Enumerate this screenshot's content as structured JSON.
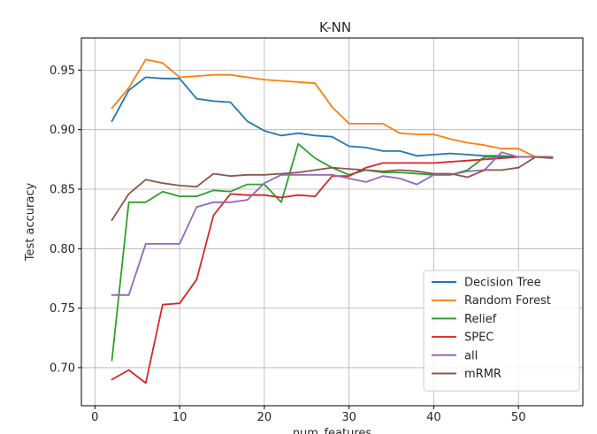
{
  "chart_data": {
    "type": "line",
    "title": "K-NN",
    "xlabel": "num_features",
    "ylabel": "Test accuracy",
    "xlim": [
      -1.6,
      57.6
    ],
    "ylim": [
      0.668,
      0.977
    ],
    "xticks": [
      0,
      10,
      20,
      30,
      40,
      50
    ],
    "yticks": [
      0.7,
      0.75,
      0.8,
      0.85,
      0.9,
      0.95
    ],
    "xtick_labels": [
      "0",
      "10",
      "20",
      "30",
      "40",
      "50"
    ],
    "ytick_labels": [
      "0.70",
      "0.75",
      "0.80",
      "0.85",
      "0.90",
      "0.95"
    ],
    "grid": true,
    "legend_position": "bottom-right",
    "x": [
      2,
      4,
      6,
      8,
      10,
      12,
      14,
      16,
      18,
      20,
      22,
      24,
      26,
      28,
      30,
      32,
      34,
      36,
      38,
      40,
      42,
      44,
      46,
      48,
      50,
      52,
      54
    ],
    "series": [
      {
        "name": "Decision Tree",
        "color": "#1f77b4",
        "values": [
          0.907,
          0.933,
          0.944,
          0.943,
          0.943,
          0.926,
          0.924,
          0.923,
          0.907,
          0.899,
          0.895,
          0.897,
          0.895,
          0.894,
          0.886,
          0.885,
          0.882,
          0.882,
          0.878,
          0.879,
          0.88,
          0.879,
          0.878,
          0.878,
          0.877,
          0.877,
          0.877
        ]
      },
      {
        "name": "Random Forest",
        "color": "#ff7f0e",
        "values": [
          0.918,
          0.935,
          0.959,
          0.956,
          0.944,
          0.945,
          0.946,
          0.946,
          0.944,
          0.942,
          0.941,
          0.94,
          0.939,
          0.919,
          0.905,
          0.905,
          0.905,
          0.897,
          0.896,
          0.896,
          0.892,
          0.889,
          0.887,
          0.884,
          0.884,
          0.877,
          0.877
        ]
      },
      {
        "name": "Relief",
        "color": "#2ca02c",
        "values": [
          0.706,
          0.839,
          0.839,
          0.848,
          0.844,
          0.844,
          0.849,
          0.848,
          0.854,
          0.854,
          0.839,
          0.888,
          0.876,
          0.868,
          0.862,
          0.866,
          0.864,
          0.864,
          0.863,
          0.862,
          0.862,
          0.866,
          0.877,
          0.877,
          0.877,
          0.877,
          0.877
        ]
      },
      {
        "name": "SPEC",
        "color": "#d62728",
        "values": [
          0.69,
          0.698,
          0.687,
          0.753,
          0.754,
          0.774,
          0.828,
          0.846,
          0.845,
          0.845,
          0.843,
          0.845,
          0.844,
          0.861,
          0.861,
          0.868,
          0.872,
          0.872,
          0.872,
          0.872,
          0.873,
          0.874,
          0.875,
          0.876,
          0.877,
          0.877,
          0.877
        ]
      },
      {
        "name": "all",
        "color": "#9467bd",
        "values": [
          0.761,
          0.761,
          0.804,
          0.804,
          0.804,
          0.835,
          0.839,
          0.839,
          0.841,
          0.855,
          0.862,
          0.862,
          0.862,
          0.862,
          0.859,
          0.856,
          0.861,
          0.859,
          0.854,
          0.862,
          0.862,
          0.865,
          0.866,
          0.881,
          0.877,
          0.877,
          0.877
        ]
      },
      {
        "name": "mRMR",
        "color": "#8c564b",
        "values": [
          0.824,
          0.846,
          0.858,
          0.855,
          0.853,
          0.852,
          0.863,
          0.861,
          0.862,
          0.862,
          0.863,
          0.864,
          0.866,
          0.868,
          0.867,
          0.866,
          0.865,
          0.866,
          0.865,
          0.863,
          0.863,
          0.86,
          0.866,
          0.866,
          0.868,
          0.877,
          0.876
        ]
      }
    ]
  }
}
